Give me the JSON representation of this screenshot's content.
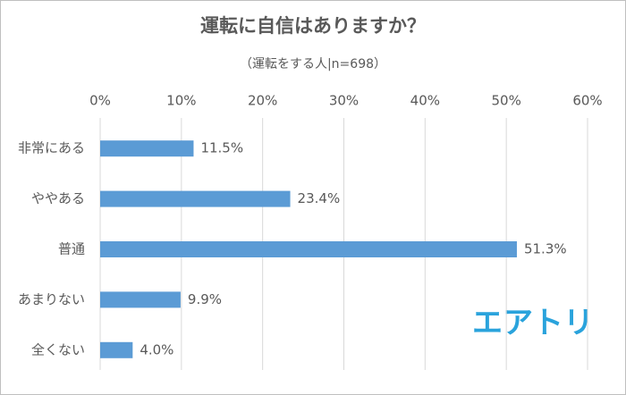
{
  "chart_data": {
    "type": "hbar",
    "title": "運転に自信はありますか？",
    "subtitle": "（運転をする人|n=698）",
    "categories": [
      "非常にある",
      "ややある",
      "普通",
      "あまりない",
      "全くない"
    ],
    "values": [
      11.5,
      23.4,
      51.3,
      9.9,
      4.0
    ],
    "value_labels": [
      "11.5%",
      "23.4%",
      "51.3%",
      "9.9%",
      "4.0%"
    ],
    "color": "#5b9bd5",
    "xlim": [
      0,
      60
    ],
    "xticks": [
      {
        "value": 0,
        "label": "0%"
      },
      {
        "value": 10,
        "label": "10%"
      },
      {
        "value": 20,
        "label": "20%"
      },
      {
        "value": 30,
        "label": "30%"
      },
      {
        "value": 40,
        "label": "40%"
      },
      {
        "value": 50,
        "label": "50%"
      },
      {
        "value": 60,
        "label": "60%"
      }
    ],
    "grid": true,
    "watermark": "エアトリ"
  }
}
